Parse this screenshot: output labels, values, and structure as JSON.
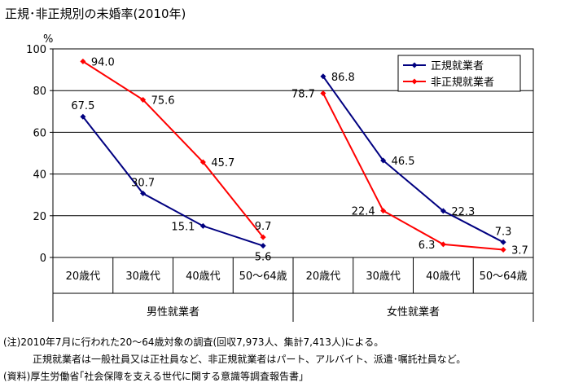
{
  "title": "正規･非正規別の未婚率(2010年)",
  "chart_data": {
    "type": "line",
    "unit": "%",
    "ylim": [
      0,
      100
    ],
    "yticks": [
      0,
      20,
      40,
      60,
      80,
      100
    ],
    "grid": true,
    "legend_position": "top-right",
    "categories": [
      "20歳代",
      "30歳代",
      "40歳代",
      "50～64歳"
    ],
    "groups": [
      {
        "label": "男性就業者",
        "series": [
          {
            "name": "正規就業者",
            "values": [
              67.5,
              30.7,
              15.1,
              5.6
            ]
          },
          {
            "name": "非正規就業者",
            "values": [
              94.0,
              75.6,
              45.7,
              9.7
            ]
          }
        ]
      },
      {
        "label": "女性就業者",
        "series": [
          {
            "name": "正規就業者",
            "values": [
              86.8,
              46.5,
              22.3,
              7.3
            ]
          },
          {
            "name": "非正規就業者",
            "values": [
              78.7,
              22.4,
              6.3,
              3.7
            ]
          }
        ]
      }
    ],
    "colors": {
      "正規就業者": "#000080",
      "非正規就業者": "#ff0000"
    }
  },
  "notes": [
    "(注)2010年7月に行われた20～64歳対象の調査(回収7,973人、集計7,413人)による。",
    "正規就業者は一般社員又は正社員など、非正規就業者はパート、アルバイト、派遣･嘱託社員など。",
    "(資料)厚生労働省｢社会保障を支える世代に関する意識等調査報告書｣"
  ]
}
